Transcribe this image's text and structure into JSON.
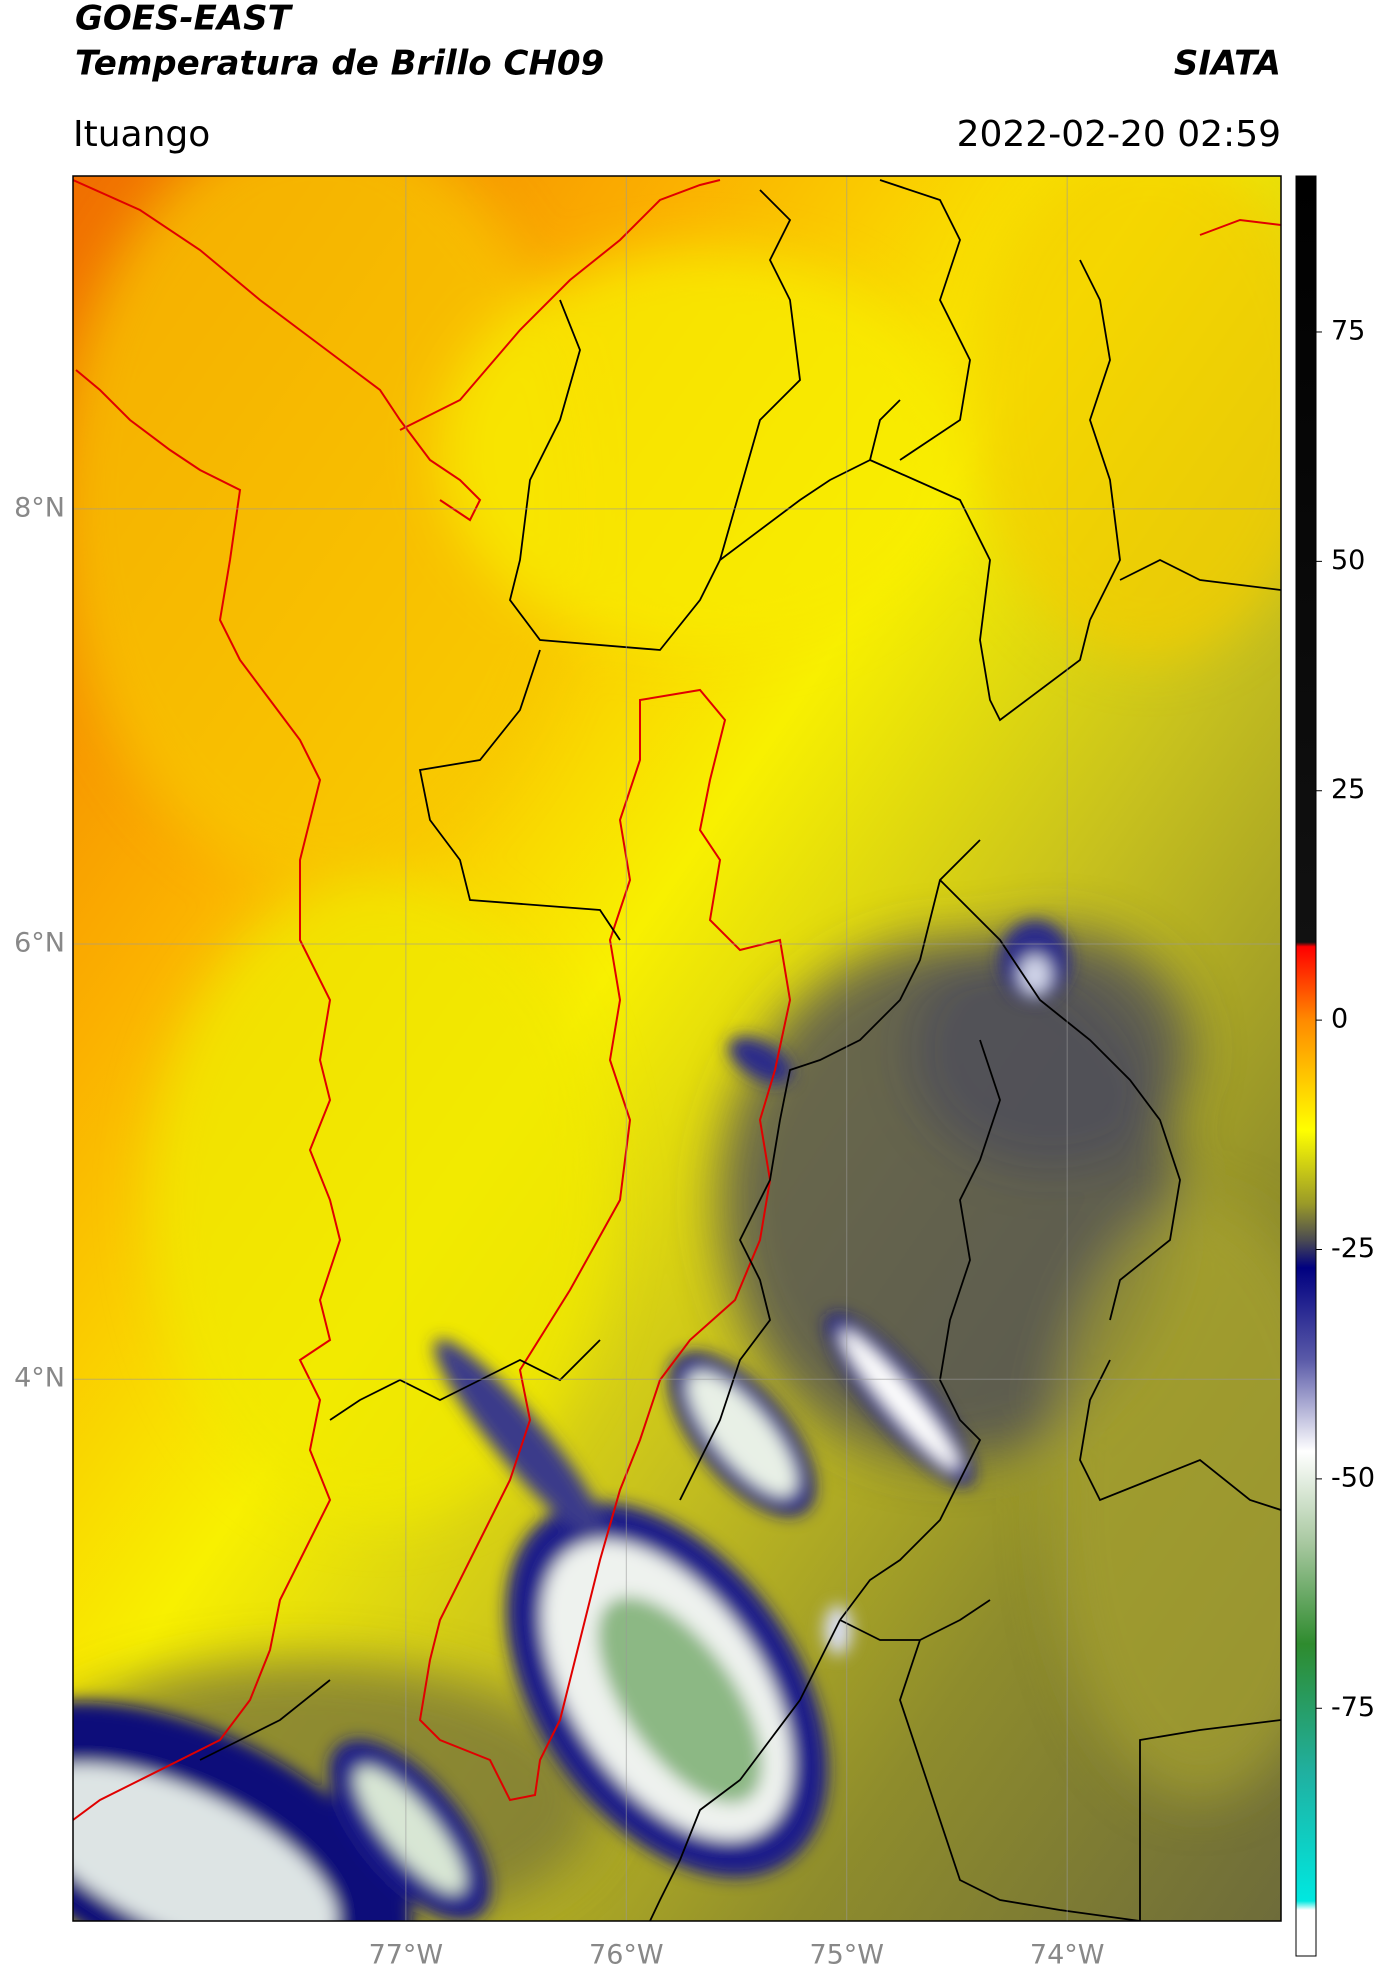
{
  "header": {
    "title_line1": "GOES-EAST",
    "title_line2": "Temperatura de Brillo CH09",
    "source": "SIATA",
    "region": "Ituango",
    "timestamp": "2022-02-20 02:59"
  },
  "map": {
    "lon_range": [
      -78.51,
      -73.03
    ],
    "lat_range": [
      1.51,
      9.53
    ],
    "lon_ticks": [
      {
        "value": -77,
        "label": "77°W"
      },
      {
        "value": -76,
        "label": "76°W"
      },
      {
        "value": -75,
        "label": "75°W"
      },
      {
        "value": -74,
        "label": "74°W"
      }
    ],
    "lat_ticks": [
      {
        "value": 8,
        "label": "8°N"
      },
      {
        "value": 6,
        "label": "6°N"
      },
      {
        "value": 4,
        "label": "4°N"
      }
    ],
    "grid": true
  },
  "colorbar": {
    "lim": [
      -102,
      92
    ],
    "ticks": [
      75,
      50,
      25,
      0,
      -25,
      -50,
      -75
    ],
    "colorscale": [
      {
        "value": 92,
        "color": "#000000"
      },
      {
        "value": 8.5,
        "color": "#111111"
      },
      {
        "value": 8,
        "color": "#ff0000"
      },
      {
        "value": 0,
        "color": "#ff8a00"
      },
      {
        "value": -12,
        "color": "#ffff00"
      },
      {
        "value": -20,
        "color": "#9a9a28"
      },
      {
        "value": -24,
        "color": "#4a4a52"
      },
      {
        "value": -27,
        "color": "#000080"
      },
      {
        "value": -37,
        "color": "#5a5aa8"
      },
      {
        "value": -47,
        "color": "#ffffff"
      },
      {
        "value": -57,
        "color": "#a8c8a0"
      },
      {
        "value": -68,
        "color": "#2e8b2e"
      },
      {
        "value": -82,
        "color": "#20b0a0"
      },
      {
        "value": -96,
        "color": "#00e8e0"
      },
      {
        "value": -97,
        "color": "#ffffff"
      },
      {
        "value": -102,
        "color": "#ffffff"
      }
    ]
  }
}
